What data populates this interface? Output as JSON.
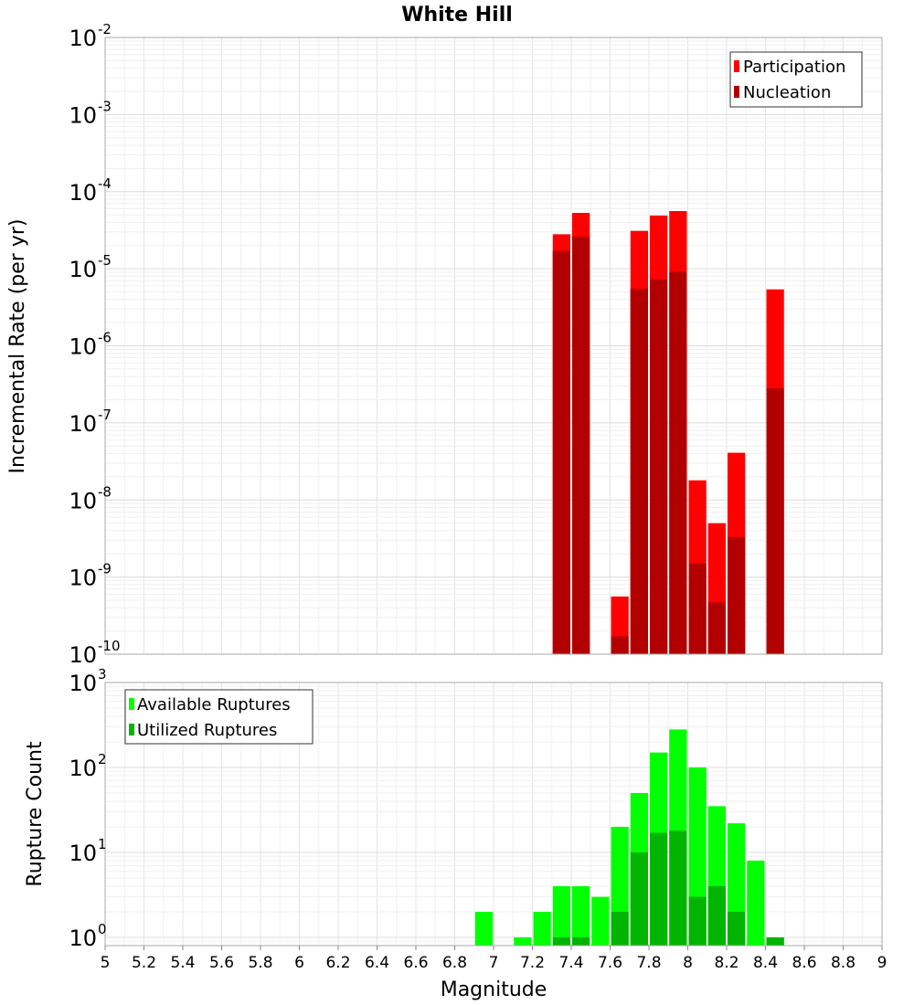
{
  "chart_data": [
    {
      "type": "bar",
      "title": "White Hill",
      "xlabel": "",
      "ylabel": "Incremental Rate (per yr)",
      "xlim": [
        5,
        9
      ],
      "ylim": [
        1e-10,
        0.01
      ],
      "yscale": "log",
      "bin_width": 0.1,
      "grid": true,
      "legend_position": "top-right",
      "y_tick_exponents": [
        "-2",
        "-3",
        "-4",
        "-5",
        "-6",
        "-7",
        "-8",
        "-9",
        "-10"
      ],
      "series": [
        {
          "name": "Participation",
          "color": "#ff0000",
          "x": [
            7.35,
            7.45,
            7.65,
            7.75,
            7.85,
            7.95,
            8.05,
            8.15,
            8.25,
            8.45
          ],
          "values": [
            2.8e-05,
            5.3e-05,
            5.6e-10,
            3.1e-05,
            4.9e-05,
            5.6e-05,
            1.8e-08,
            5e-09,
            4.1e-08,
            5.4e-06
          ]
        },
        {
          "name": "Nucleation",
          "color": "#b20000",
          "x": [
            7.35,
            7.45,
            7.65,
            7.75,
            7.85,
            7.95,
            8.05,
            8.15,
            8.25,
            8.45
          ],
          "values": [
            1.7e-05,
            2.6e-05,
            1.7e-10,
            5.5e-06,
            7.3e-06,
            9.1e-06,
            1.5e-09,
            4.7e-10,
            3.3e-09,
            2.8e-07
          ]
        }
      ]
    },
    {
      "type": "bar",
      "title": "",
      "xlabel": "Magnitude",
      "ylabel": "Rupture Count",
      "xlim": [
        5,
        9
      ],
      "ylim": [
        0.8,
        1000
      ],
      "yscale": "log",
      "bin_width": 0.1,
      "grid": true,
      "legend_position": "top-left",
      "x_ticks": [
        "5",
        "5.2",
        "5.4",
        "5.6",
        "5.8",
        "6",
        "6.2",
        "6.4",
        "6.6",
        "6.8",
        "7",
        "7.2",
        "7.4",
        "7.6",
        "7.8",
        "8",
        "8.2",
        "8.4",
        "8.6",
        "8.8",
        "9"
      ],
      "y_tick_exponents": [
        "3",
        "2",
        "1",
        "0"
      ],
      "series": [
        {
          "name": "Available Ruptures",
          "color": "#00ff00",
          "x": [
            6.95,
            7.15,
            7.25,
            7.35,
            7.45,
            7.55,
            7.65,
            7.75,
            7.85,
            7.95,
            8.05,
            8.15,
            8.25,
            8.35,
            8.45
          ],
          "values": [
            2,
            1,
            2,
            4,
            4,
            3,
            20,
            50,
            150,
            280,
            100,
            35,
            22,
            8,
            1
          ]
        },
        {
          "name": "Utilized Ruptures",
          "color": "#00b400",
          "x": [
            7.35,
            7.45,
            7.65,
            7.75,
            7.85,
            7.95,
            8.05,
            8.15,
            8.25,
            8.45
          ],
          "values": [
            1,
            1,
            2,
            10,
            17,
            18,
            3,
            4,
            2,
            1
          ]
        }
      ]
    }
  ]
}
